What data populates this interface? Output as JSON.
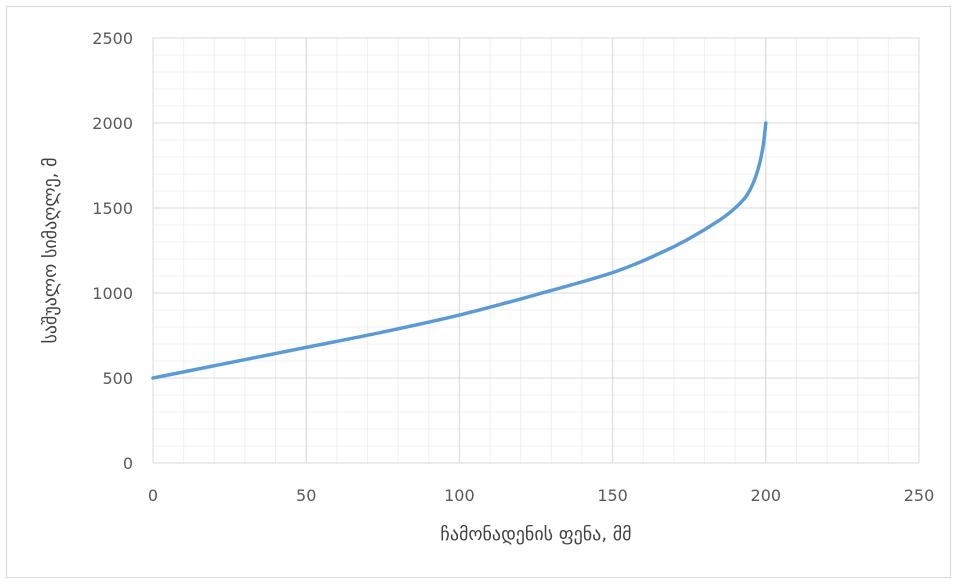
{
  "chart_data": {
    "type": "line",
    "title": "",
    "xlabel": "ჩამონადენის ფენა, მმ",
    "ylabel": "საშუალო სიმაღლე, მ",
    "xlim": [
      0,
      250
    ],
    "ylim": [
      0,
      2500
    ],
    "x_ticks": [
      0,
      50,
      100,
      150,
      200,
      250
    ],
    "y_ticks": [
      0,
      500,
      1000,
      1500,
      2000,
      2500
    ],
    "x_tick_labels": [
      "0",
      "50",
      "100",
      "150",
      "200",
      "250"
    ],
    "y_tick_labels": [
      "0",
      "500",
      "1000",
      "1500",
      "2000",
      "2500"
    ],
    "grid": true,
    "minor_grid": true,
    "legend": "none",
    "series_color": "#5b9bd5",
    "series": [
      {
        "x": [
          0,
          25,
          50,
          75,
          100,
          125,
          150,
          165,
          175,
          185,
          190,
          194,
          197,
          199,
          200
        ],
        "y": [
          500,
          590,
          680,
          770,
          870,
          990,
          1120,
          1230,
          1320,
          1430,
          1500,
          1580,
          1700,
          1850,
          2000
        ]
      }
    ]
  }
}
